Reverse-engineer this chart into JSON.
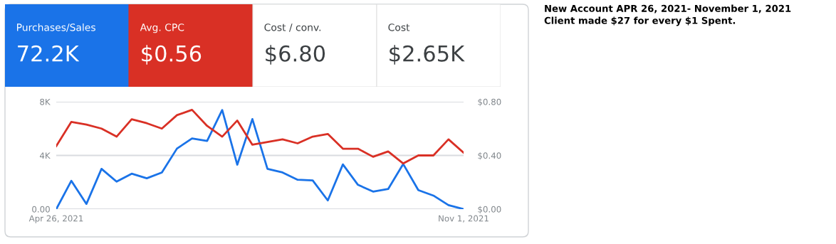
{
  "chart_data": [
    {
      "type": "other",
      "categories": [
        "Purchases/Sales",
        "Avg. CPC",
        "Cost / conv.",
        "Cost"
      ],
      "value_labels": [
        "72.2K",
        "$0.56",
        "$6.80",
        "$2.65K"
      ],
      "colors": [
        "#1a73e8",
        "#d93025",
        "#ffffff",
        "#ffffff"
      ],
      "annotations": [
        "New Account APR 26, 2021- November 1, 2021",
        "Client made $27 for every $1 Spent."
      ]
    },
    {
      "type": "line",
      "x": [
        "2021-04-26",
        "2021-05-03",
        "2021-05-10",
        "2021-05-17",
        "2021-05-24",
        "2021-05-31",
        "2021-06-07",
        "2021-06-14",
        "2021-06-21",
        "2021-06-28",
        "2021-07-05",
        "2021-07-12",
        "2021-07-19",
        "2021-07-26",
        "2021-08-02",
        "2021-08-09",
        "2021-08-16",
        "2021-08-23",
        "2021-08-30",
        "2021-09-06",
        "2021-09-13",
        "2021-09-20",
        "2021-09-27",
        "2021-10-04",
        "2021-10-11",
        "2021-10-18",
        "2021-10-25",
        "2021-11-01"
      ],
      "series": [
        {
          "color": "#1a73e8",
          "values": [
            0,
            2110,
            390,
            3000,
            2050,
            2640,
            2300,
            2730,
            4510,
            5260,
            5080,
            7380,
            3310,
            6710,
            3000,
            2730,
            2190,
            2140,
            650,
            3330,
            1810,
            1310,
            1500,
            3360,
            1420,
            1010,
            300,
            0
          ]
        },
        {
          "color": "#d93025",
          "axis": "y2",
          "values": [
            0.47,
            0.65,
            0.63,
            0.6,
            0.54,
            0.67,
            0.64,
            0.6,
            0.7,
            0.74,
            0.62,
            0.54,
            0.66,
            0.48,
            0.5,
            0.52,
            0.49,
            0.54,
            0.56,
            0.45,
            0.45,
            0.39,
            0.43,
            0.34,
            0.4,
            0.4,
            0.52,
            0.42
          ]
        }
      ],
      "xlim": [
        "2021-04-26",
        "2021-11-01"
      ],
      "xticks": [
        {
          "value": "2021-04-26",
          "label": "Apr 26, 2021"
        },
        {
          "value": "2021-11-01",
          "label": "Nov 1, 2021"
        }
      ],
      "ylim": [
        0,
        8000
      ],
      "yticks": [
        {
          "value": 0,
          "label": "0.00"
        },
        {
          "value": 4000,
          "label": "4K"
        },
        {
          "value": 8000,
          "label": "8K"
        }
      ],
      "y2lim": [
        0,
        0.8
      ],
      "y2ticks": [
        {
          "value": 0,
          "label": "$0.00"
        },
        {
          "value": 0.4,
          "label": "$0.40"
        },
        {
          "value": 0.8,
          "label": "$0.80"
        }
      ],
      "grid": "y",
      "legend": false,
      "marker": "none",
      "line_style": "solid"
    }
  ]
}
